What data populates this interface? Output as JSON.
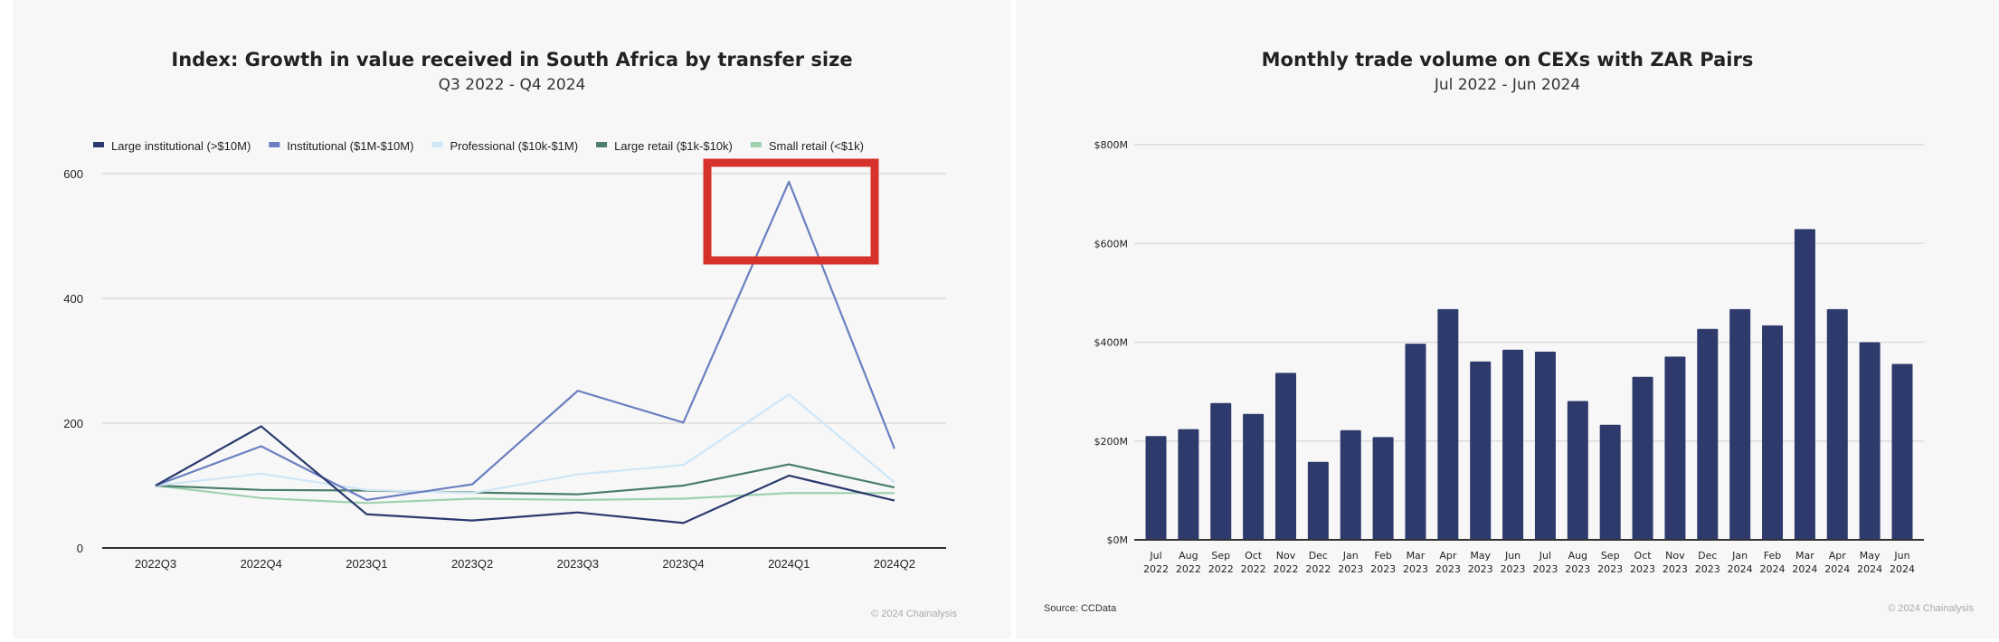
{
  "chart_data": [
    {
      "type": "line",
      "title": "Index: Growth in value received in South Africa by transfer size",
      "subtitle": "Q3 2022 - Q4 2024",
      "categories": [
        "2022Q3",
        "2022Q4",
        "2023Q1",
        "2023Q2",
        "2023Q3",
        "2023Q4",
        "2024Q1",
        "2024Q2"
      ],
      "ylim": [
        0,
        600
      ],
      "yticks": [
        "0",
        "200",
        "400",
        "600"
      ],
      "grid": true,
      "legend_position": "top",
      "series": [
        {
          "name": "Large institutional (>$10M)",
          "color": "#2b3a6e",
          "values": [
            100,
            195,
            54,
            44,
            57,
            40,
            116,
            76
          ]
        },
        {
          "name": "Institutional ($1M-$10M)",
          "color": "#6b7fc0",
          "values": [
            100,
            163,
            77,
            102,
            252,
            201,
            587,
            159
          ]
        },
        {
          "name": "Professional ($10k-$1M)",
          "color": "#cfe6f7",
          "values": [
            100,
            119,
            93,
            88,
            118,
            133,
            246,
            105
          ]
        },
        {
          "name": "Large retail ($1k-$10k)",
          "color": "#4a7d6a",
          "values": [
            100,
            93,
            92,
            89,
            86,
            100,
            134,
            97
          ]
        },
        {
          "name": "Small retail (<$1k)",
          "color": "#9fd1b0",
          "values": [
            100,
            80,
            72,
            79,
            77,
            79,
            88,
            88
          ]
        }
      ],
      "annotation": {
        "type": "highlight-box",
        "target": "2024Q1 Institutional peak",
        "color": "#d7312c"
      },
      "footer": "© 2024 Chainalysis"
    },
    {
      "type": "bar",
      "title": "Monthly trade volume on CEXs with ZAR Pairs",
      "subtitle": "Jul 2022 - Jun 2024",
      "categories": [
        [
          "Jul",
          "2022"
        ],
        [
          "Aug",
          "2022"
        ],
        [
          "Sep",
          "2022"
        ],
        [
          "Oct",
          "2022"
        ],
        [
          "Nov",
          "2022"
        ],
        [
          "Dec",
          "2022"
        ],
        [
          "Jan",
          "2023"
        ],
        [
          "Feb",
          "2023"
        ],
        [
          "Mar",
          "2023"
        ],
        [
          "Apr",
          "2023"
        ],
        [
          "May",
          "2023"
        ],
        [
          "Jun",
          "2023"
        ],
        [
          "Jul",
          "2023"
        ],
        [
          "Aug",
          "2023"
        ],
        [
          "Sep",
          "2023"
        ],
        [
          "Oct",
          "2023"
        ],
        [
          "Nov",
          "2023"
        ],
        [
          "Dec",
          "2023"
        ],
        [
          "Jan",
          "2024"
        ],
        [
          "Feb",
          "2024"
        ],
        [
          "Mar",
          "2024"
        ],
        [
          "Apr",
          "2024"
        ],
        [
          "May",
          "2024"
        ],
        [
          "Jun",
          "2024"
        ]
      ],
      "values": [
        210,
        224,
        277,
        255,
        338,
        158,
        222,
        208,
        397,
        467,
        361,
        385,
        381,
        281,
        233,
        330,
        371,
        427,
        467,
        434,
        629,
        467,
        400,
        356
      ],
      "unit": "$M",
      "ylim": [
        0,
        800
      ],
      "yticks": [
        "$0M",
        "$200M",
        "$400M",
        "$600M",
        "$800M"
      ],
      "grid": true,
      "color": "#2d3a6b",
      "source": "Source: CCData",
      "footer": "© 2024 Chainalysis"
    }
  ]
}
